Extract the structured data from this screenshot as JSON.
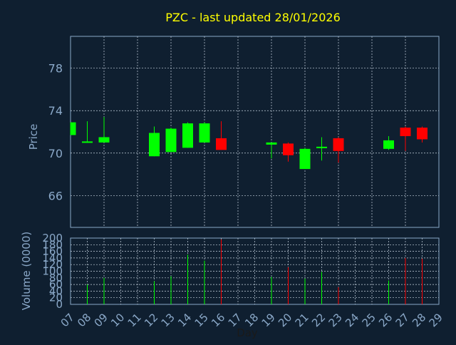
{
  "chart_data": [
    {
      "type": "candlestick",
      "title": "PZC - last updated 28/01/2026",
      "ylabel": "Price",
      "ylim": [
        63,
        81
      ],
      "yticks": [
        66,
        70,
        74,
        78
      ],
      "x_ticks": [
        "07",
        "08",
        "09",
        "10",
        "11",
        "12",
        "13",
        "14",
        "15",
        "16",
        "17",
        "18",
        "19",
        "20",
        "21",
        "22",
        "23",
        "24",
        "25",
        "26",
        "27",
        "28",
        "29"
      ],
      "x_range": [
        7,
        29
      ],
      "grid": true,
      "up_color": "#00ff00",
      "down_color": "#ff0000",
      "candles": [
        {
          "day": 7,
          "open": 71.7,
          "high": 72.9,
          "low": 71.7,
          "close": 72.9
        },
        {
          "day": 8,
          "open": 71.0,
          "high": 73.0,
          "low": 71.0,
          "close": 71.1
        },
        {
          "day": 9,
          "open": 71.0,
          "high": 73.4,
          "low": 71.0,
          "close": 71.5
        },
        {
          "day": 12,
          "open": 69.7,
          "high": 72.5,
          "low": 69.7,
          "close": 71.9
        },
        {
          "day": 13,
          "open": 70.1,
          "high": 72.4,
          "low": 70.1,
          "close": 72.3
        },
        {
          "day": 14,
          "open": 70.5,
          "high": 72.9,
          "low": 70.5,
          "close": 72.8
        },
        {
          "day": 15,
          "open": 71.0,
          "high": 72.9,
          "low": 71.0,
          "close": 72.8
        },
        {
          "day": 16,
          "open": 71.4,
          "high": 73.0,
          "low": 70.3,
          "close": 70.3
        },
        {
          "day": 19,
          "open": 70.8,
          "high": 71.0,
          "low": 69.5,
          "close": 71.0
        },
        {
          "day": 20,
          "open": 70.9,
          "high": 71.0,
          "low": 69.2,
          "close": 69.8
        },
        {
          "day": 21,
          "open": 68.5,
          "high": 70.5,
          "low": 68.5,
          "close": 70.4
        },
        {
          "day": 22,
          "open": 70.5,
          "high": 71.5,
          "low": 69.3,
          "close": 70.6
        },
        {
          "day": 23,
          "open": 71.4,
          "high": 71.5,
          "low": 69.1,
          "close": 70.2
        },
        {
          "day": 26,
          "open": 70.4,
          "high": 71.6,
          "low": 70.3,
          "close": 71.2
        },
        {
          "day": 27,
          "open": 72.4,
          "high": 72.5,
          "low": 70.2,
          "close": 71.6
        },
        {
          "day": 28,
          "open": 72.4,
          "high": 72.5,
          "low": 71.0,
          "close": 71.3
        }
      ]
    },
    {
      "type": "bar",
      "ylabel": "Volume (0000)",
      "xlabel": "Day",
      "ylim": [
        0,
        200
      ],
      "yticks": [
        0,
        20,
        40,
        60,
        80,
        100,
        120,
        140,
        160,
        180,
        200
      ],
      "x_ticks": [
        "07",
        "08",
        "09",
        "10",
        "11",
        "12",
        "13",
        "14",
        "15",
        "16",
        "17",
        "18",
        "19",
        "20",
        "21",
        "22",
        "23",
        "24",
        "25",
        "26",
        "27",
        "28",
        "29"
      ],
      "x_range": [
        7,
        29
      ],
      "grid": true,
      "bars": [
        {
          "day": 8,
          "value": 60,
          "direction": "up"
        },
        {
          "day": 9,
          "value": 80,
          "direction": "up"
        },
        {
          "day": 12,
          "value": 70,
          "direction": "up"
        },
        {
          "day": 13,
          "value": 85,
          "direction": "up"
        },
        {
          "day": 14,
          "value": 150,
          "direction": "up"
        },
        {
          "day": 15,
          "value": 132,
          "direction": "up"
        },
        {
          "day": 16,
          "value": 196,
          "direction": "down"
        },
        {
          "day": 19,
          "value": 83,
          "direction": "up"
        },
        {
          "day": 20,
          "value": 112,
          "direction": "down"
        },
        {
          "day": 21,
          "value": 78,
          "direction": "up"
        },
        {
          "day": 22,
          "value": 98,
          "direction": "up"
        },
        {
          "day": 23,
          "value": 52,
          "direction": "down"
        },
        {
          "day": 26,
          "value": 72,
          "direction": "up"
        },
        {
          "day": 27,
          "value": 140,
          "direction": "down"
        },
        {
          "day": 28,
          "value": 138,
          "direction": "down"
        }
      ]
    }
  ],
  "colors": {
    "background": "#0f1f30",
    "title": "#ffff00",
    "axis_text": "#8aa8c8",
    "frame": "#8aa8c8",
    "grid": "#c8d4e0"
  }
}
